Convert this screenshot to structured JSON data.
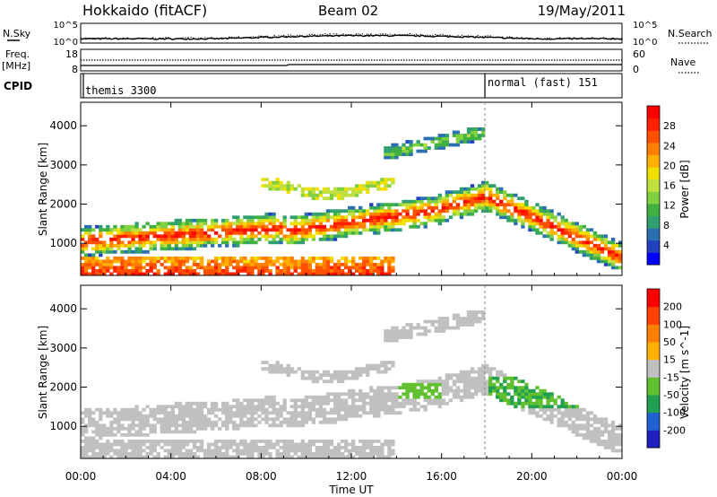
{
  "header": {
    "station": "Hokkaido (fitACF)",
    "beam": "Beam 02",
    "date": "19/May/2011"
  },
  "strip_labels": {
    "nsky": "N.Sky",
    "nsearch": "N.Search",
    "freq": "Freq.",
    "freq_unit": "[MHz]",
    "nave": "Nave",
    "cpid": "CPID",
    "nsky_ticks": [
      "10^5",
      "10^0"
    ],
    "nsearch_ticks": [
      "10^5",
      "10^0"
    ],
    "freq_ticks": [
      "18",
      "8"
    ],
    "nave_ticks": [
      "60",
      "0"
    ]
  },
  "cpid_segments": [
    {
      "label": "themis 3300",
      "start_hour": 0
    },
    {
      "label": "normal (fast) 151",
      "start_hour": 18
    }
  ],
  "time_axis": {
    "label": "Time UT",
    "ticks": [
      "00:00",
      "04:00",
      "08:00",
      "12:00",
      "16:00",
      "20:00",
      "00:00"
    ]
  },
  "chart_data": [
    {
      "type": "heatmap",
      "name": "Power",
      "ylabel": "Slant Range [km]",
      "yticks": [
        "1000",
        "2000",
        "3000",
        "4000"
      ],
      "xlim": [
        0,
        24
      ],
      "ylim": [
        180,
        4600
      ],
      "colorbar_label": "Power [dB]",
      "colorbar_ticks": [
        "4",
        "8",
        "12",
        "16",
        "20",
        "24",
        "28"
      ],
      "colorbar_colors": [
        "#0000ff",
        "#2040c0",
        "#2a70b0",
        "#30a070",
        "#40b040",
        "#80d040",
        "#c0e040",
        "#f0e000",
        "#ffb000",
        "#ff8000",
        "#ff5000",
        "#ff2000",
        "#ff0000"
      ],
      "color_range": [
        0,
        32
      ]
    },
    {
      "type": "heatmap",
      "name": "Velocity",
      "ylabel": "Slant Range [km]",
      "yticks": [
        "1000",
        "2000",
        "3000",
        "4000"
      ],
      "xlim": [
        0,
        24
      ],
      "ylim": [
        180,
        4600
      ],
      "colorbar_label": "Velocity [m s^-1]",
      "colorbar_ticks": [
        "200",
        "100",
        "50",
        "15",
        "-15",
        "-50",
        "-100",
        "-200"
      ],
      "colorbar_colors": [
        "#2020c0",
        "#2060d0",
        "#20a050",
        "#60c030",
        "#c0c0c0",
        "#ffb000",
        "#ff8000",
        "#ff4000",
        "#ff0000"
      ],
      "color_range": [
        -250,
        250
      ]
    }
  ]
}
